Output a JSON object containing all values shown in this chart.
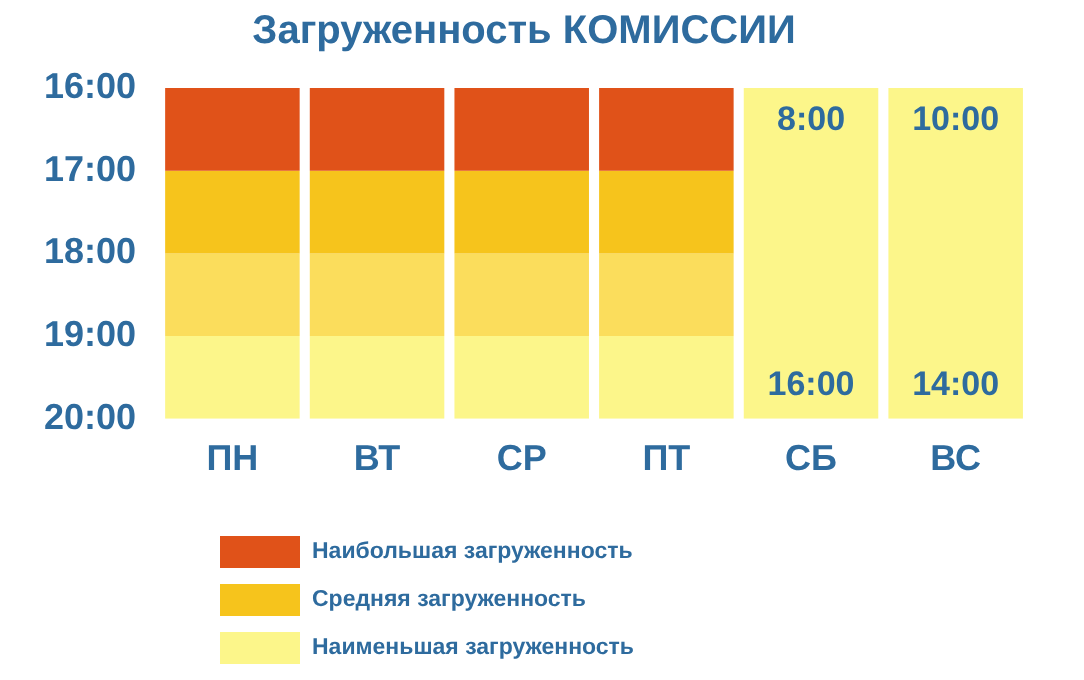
{
  "chart_data": {
    "type": "bar",
    "title": "Загруженность КОМИССИИ",
    "categories": [
      "ПН",
      "ВТ",
      "СР",
      "ПТ",
      "СБ",
      "ВС"
    ],
    "series": [
      {
        "name": "Наибольшая загруженность",
        "color": "#e05219",
        "values": [
          1,
          1,
          1,
          1,
          null,
          null
        ],
        "base": [
          16,
          16,
          16,
          16,
          null,
          null
        ]
      },
      {
        "name": "Средняя загруженность",
        "color": "#f6c41c",
        "values": [
          1,
          1,
          1,
          1,
          null,
          null
        ],
        "base": [
          17,
          17,
          17,
          17,
          null,
          null
        ]
      },
      {
        "color": "#fbdd5c",
        "values": [
          1,
          1,
          1,
          1,
          null,
          null
        ],
        "base": [
          18,
          18,
          18,
          18,
          null,
          null
        ]
      },
      {
        "name": "Наименьшая загруженность",
        "color": "#fcf68a",
        "values": [
          1,
          1,
          1,
          1,
          4,
          4
        ],
        "base": [
          19,
          19,
          19,
          19,
          16,
          16
        ]
      }
    ],
    "ylim": [
      20,
      16
    ],
    "yticks": [
      {
        "value": 16,
        "label": "16:00"
      },
      {
        "value": 17,
        "label": "17:00"
      },
      {
        "value": 18,
        "label": "18:00"
      },
      {
        "value": 19,
        "label": "19:00"
      },
      {
        "value": 20,
        "label": "20:00"
      }
    ],
    "annotations": [
      "8:00",
      "16:00",
      "10:00",
      "14:00"
    ],
    "grid": false,
    "legend": "bottom left"
  }
}
